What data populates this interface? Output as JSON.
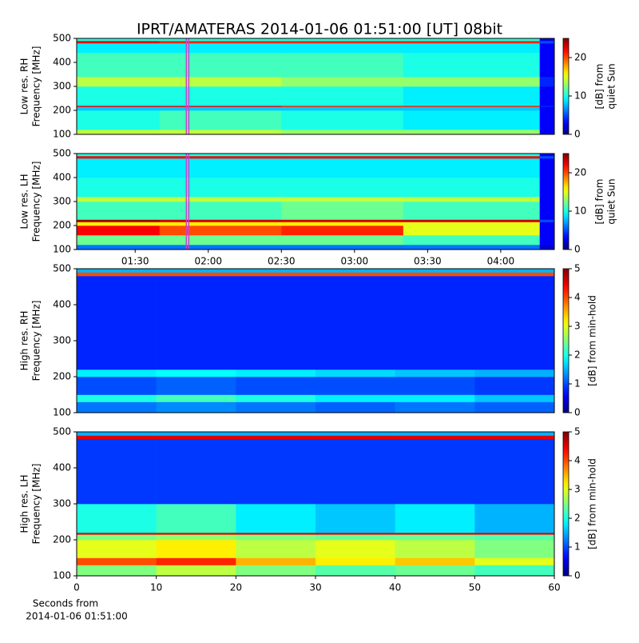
{
  "chart_data": [
    {
      "type": "heatmap",
      "title": "IPRT/AMATERAS 2014-01-06 01:51:00 [UT]   08bit",
      "ylabel": [
        "Low res. RH",
        "Frequency [MHz]"
      ],
      "cbar_label": [
        "[dB] from",
        "quiet Sun"
      ],
      "colormap": "jet",
      "xlim": [
        66,
        262
      ],
      "ylim": [
        100,
        500
      ],
      "yticks": [
        100,
        200,
        300,
        400,
        500
      ],
      "clim": [
        0,
        25
      ],
      "cticks": [
        0,
        10,
        20
      ],
      "highlight_x": [
        111,
        112
      ],
      "highlight_color": "#cc44cc",
      "xbins": [
        66,
        100,
        150,
        200,
        256,
        262
      ],
      "ybins": [
        100,
        120,
        200,
        215,
        220,
        300,
        340,
        440,
        480,
        490,
        500
      ],
      "z": [
        [
          14,
          14,
          13,
          13,
          3
        ],
        [
          10,
          11,
          10,
          9,
          3
        ],
        [
          8,
          8,
          8,
          8,
          3
        ],
        [
          22,
          22,
          21,
          21,
          4
        ],
        [
          10,
          10,
          10,
          9,
          3
        ],
        [
          14,
          14,
          13,
          13,
          4
        ],
        [
          11,
          11,
          11,
          10,
          3
        ],
        [
          9,
          9,
          9,
          9,
          3
        ],
        [
          22,
          21,
          21,
          21,
          5
        ],
        [
          10,
          10,
          10,
          10,
          3
        ]
      ]
    },
    {
      "type": "heatmap",
      "ylabel": [
        "Low res. LH",
        "Frequency [MHz]"
      ],
      "cbar_label": [
        "[dB] from",
        "quiet Sun"
      ],
      "colormap": "jet",
      "xlim": [
        66,
        262
      ],
      "xticks": [
        {
          "value": 90,
          "label": "01:30"
        },
        {
          "value": 120,
          "label": "02:00"
        },
        {
          "value": 150,
          "label": "02:30"
        },
        {
          "value": 180,
          "label": "03:00"
        },
        {
          "value": 210,
          "label": "03:30"
        },
        {
          "value": 240,
          "label": "04:00"
        }
      ],
      "ylim": [
        100,
        500
      ],
      "yticks": [
        100,
        200,
        300,
        400,
        500
      ],
      "clim": [
        0,
        25
      ],
      "cticks": [
        0,
        10,
        20
      ],
      "highlight_x": [
        111,
        112
      ],
      "highlight_color": "#cc44cc",
      "xbins": [
        66,
        100,
        150,
        200,
        256,
        262
      ],
      "ybins": [
        100,
        120,
        160,
        200,
        215,
        225,
        300,
        320,
        400,
        480,
        490,
        500
      ],
      "z": [
        [
          6,
          6,
          6,
          6,
          2
        ],
        [
          12,
          12,
          12,
          11,
          3
        ],
        [
          22,
          20,
          21,
          15,
          3
        ],
        [
          16,
          16,
          16,
          15,
          3
        ],
        [
          24,
          23,
          23,
          23,
          5
        ],
        [
          11,
          11,
          12,
          11,
          3
        ],
        [
          14,
          14,
          14,
          14,
          3
        ],
        [
          10,
          10,
          10,
          10,
          3
        ],
        [
          9,
          9,
          9,
          9,
          3
        ],
        [
          22,
          22,
          22,
          22,
          5
        ],
        [
          10,
          10,
          10,
          10,
          3
        ]
      ]
    },
    {
      "type": "heatmap",
      "ylabel": [
        "High res. RH",
        "Frequency [MHz]"
      ],
      "cbar_label": [
        "[dB] from min-hold"
      ],
      "colormap": "jet",
      "xlim": [
        0,
        60
      ],
      "ylim": [
        100,
        500
      ],
      "yticks": [
        100,
        200,
        300,
        400,
        500
      ],
      "clim": [
        0,
        5
      ],
      "cticks": [
        0,
        1,
        2,
        3,
        4,
        5
      ],
      "xbins": [
        0,
        10,
        20,
        30,
        40,
        50,
        60
      ],
      "ybins": [
        100,
        130,
        150,
        200,
        220,
        480,
        490,
        500
      ],
      "z": [
        [
          1.2,
          1.3,
          1.2,
          1.1,
          1.2,
          1.1
        ],
        [
          2.0,
          2.2,
          2.0,
          1.8,
          1.8,
          1.6
        ],
        [
          1.0,
          1.1,
          1.0,
          1.0,
          1.0,
          0.9
        ],
        [
          1.8,
          1.9,
          1.8,
          1.7,
          1.6,
          1.5
        ],
        [
          0.8,
          0.8,
          0.8,
          0.8,
          0.8,
          0.8
        ],
        [
          4.0,
          4.0,
          4.0,
          4.0,
          4.0,
          4.0
        ],
        [
          1.5,
          1.5,
          1.5,
          1.5,
          1.5,
          1.5
        ]
      ]
    },
    {
      "type": "heatmap",
      "ylabel": [
        "High res. LH",
        "Frequency [MHz]"
      ],
      "cbar_label": [
        "[dB] from min-hold"
      ],
      "xlabel": [
        "Seconds from",
        "2014-01-06 01:51:00"
      ],
      "colormap": "jet",
      "xlim": [
        0,
        60
      ],
      "xticks": [
        0,
        10,
        20,
        30,
        40,
        50,
        60
      ],
      "ylim": [
        100,
        500
      ],
      "yticks": [
        100,
        200,
        300,
        400,
        500
      ],
      "clim": [
        0,
        5
      ],
      "cticks": [
        0,
        1,
        2,
        3,
        4,
        5
      ],
      "xbins": [
        0,
        10,
        20,
        30,
        40,
        50,
        60
      ],
      "ybins": [
        100,
        130,
        150,
        200,
        215,
        220,
        300,
        480,
        490,
        500
      ],
      "z": [
        [
          2.5,
          2.8,
          2.5,
          2.3,
          2.4,
          2.2
        ],
        [
          4.0,
          4.2,
          3.5,
          3.2,
          3.4,
          3.0
        ],
        [
          3.0,
          3.2,
          2.8,
          3.0,
          2.8,
          2.5
        ],
        [
          2.5,
          2.6,
          2.5,
          2.4,
          2.4,
          2.3
        ],
        [
          4.5,
          4.5,
          4.5,
          4.5,
          4.5,
          4.5
        ],
        [
          2.0,
          2.2,
          1.8,
          1.6,
          1.8,
          1.5
        ],
        [
          0.9,
          0.9,
          0.9,
          0.9,
          0.9,
          0.9
        ],
        [
          4.5,
          4.5,
          4.5,
          4.5,
          4.5,
          4.5
        ],
        [
          1.5,
          1.5,
          1.5,
          1.5,
          1.5,
          1.5
        ]
      ]
    }
  ]
}
